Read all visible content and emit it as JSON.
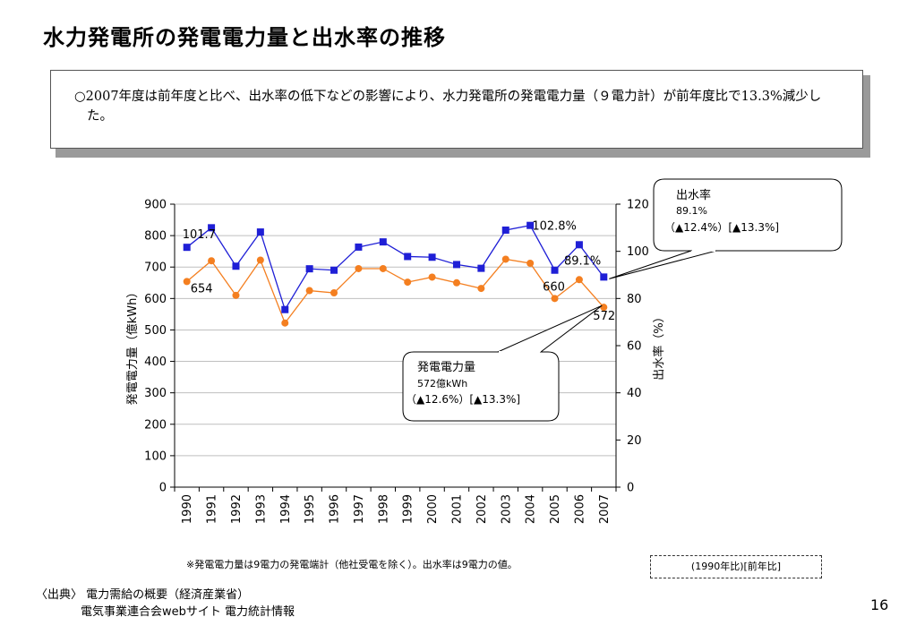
{
  "title": "水力発電所の発電電力量と出水率の推移",
  "summary": "○2007年度は前年度と比べ、出水率の低下などの影響により、水力発電所の発電電力量（９電力計）が前年度比で13.3%減少した。",
  "colors": {
    "power": "#f47f20",
    "water_rate": "#1f1fd6",
    "grid": "#bfbfbf"
  },
  "chart_data": {
    "type": "line",
    "x": [
      "1990",
      "1991",
      "1992",
      "1993",
      "1994",
      "1995",
      "1996",
      "1997",
      "1998",
      "1999",
      "2000",
      "2001",
      "2002",
      "2003",
      "2004",
      "2005",
      "2006",
      "2007"
    ],
    "series": [
      {
        "axis": "left",
        "marker": "circle",
        "color": "#f47f20",
        "values": [
          654,
          720,
          610,
          722,
          522,
          625,
          618,
          695,
          695,
          652,
          668,
          650,
          632,
          725,
          712,
          600,
          660,
          572
        ]
      },
      {
        "axis": "right",
        "marker": "square",
        "color": "#1f1fd6",
        "values": [
          101.7,
          110.0,
          93.7,
          108.2,
          75.3,
          92.6,
          92.0,
          101.8,
          104.0,
          97.8,
          97.5,
          94.4,
          92.8,
          109.0,
          111.0,
          92.0,
          102.8,
          89.1
        ]
      }
    ],
    "ylabel": "発電電力量（億kWh）",
    "ylabel_right": "出水率（%）",
    "ylim": [
      0,
      900
    ],
    "ylim_right": [
      0,
      120
    ],
    "yticks": [
      "0",
      "100",
      "200",
      "300",
      "400",
      "500",
      "600",
      "700",
      "800",
      "900"
    ],
    "yticks_right": [
      "0",
      "20",
      "40",
      "60",
      "80",
      "100",
      "120"
    ],
    "grid": true,
    "data_labels": [
      {
        "text": "101.7",
        "series": 1,
        "index": 0
      },
      {
        "text": "654",
        "series": 0,
        "index": 0
      },
      {
        "text": "102.8%",
        "series": 1,
        "index": 16
      },
      {
        "text": "660",
        "series": 0,
        "index": 16
      },
      {
        "text": "89.1%",
        "series": 1,
        "index": 17
      },
      {
        "text": "572",
        "series": 0,
        "index": 17
      }
    ],
    "callouts": {
      "water": {
        "title": "出水率",
        "value": "89.1%",
        "change": "（▲12.4%）[▲13.3%]"
      },
      "power": {
        "title": "発電電力量",
        "value": "572億kWh",
        "change": "（▲12.6%）[▲13.3%]"
      }
    }
  },
  "note": "※発電電力量は9電力の発電端計（他社受電を除く）。出水率は9電力の値。",
  "basis": "(1990年比)[前年比]",
  "source": {
    "line1": "〈出典〉 電力需給の概要（経済産業省）",
    "line2": "電気事業連合会webサイト 電力統計情報"
  },
  "page_number": "16"
}
